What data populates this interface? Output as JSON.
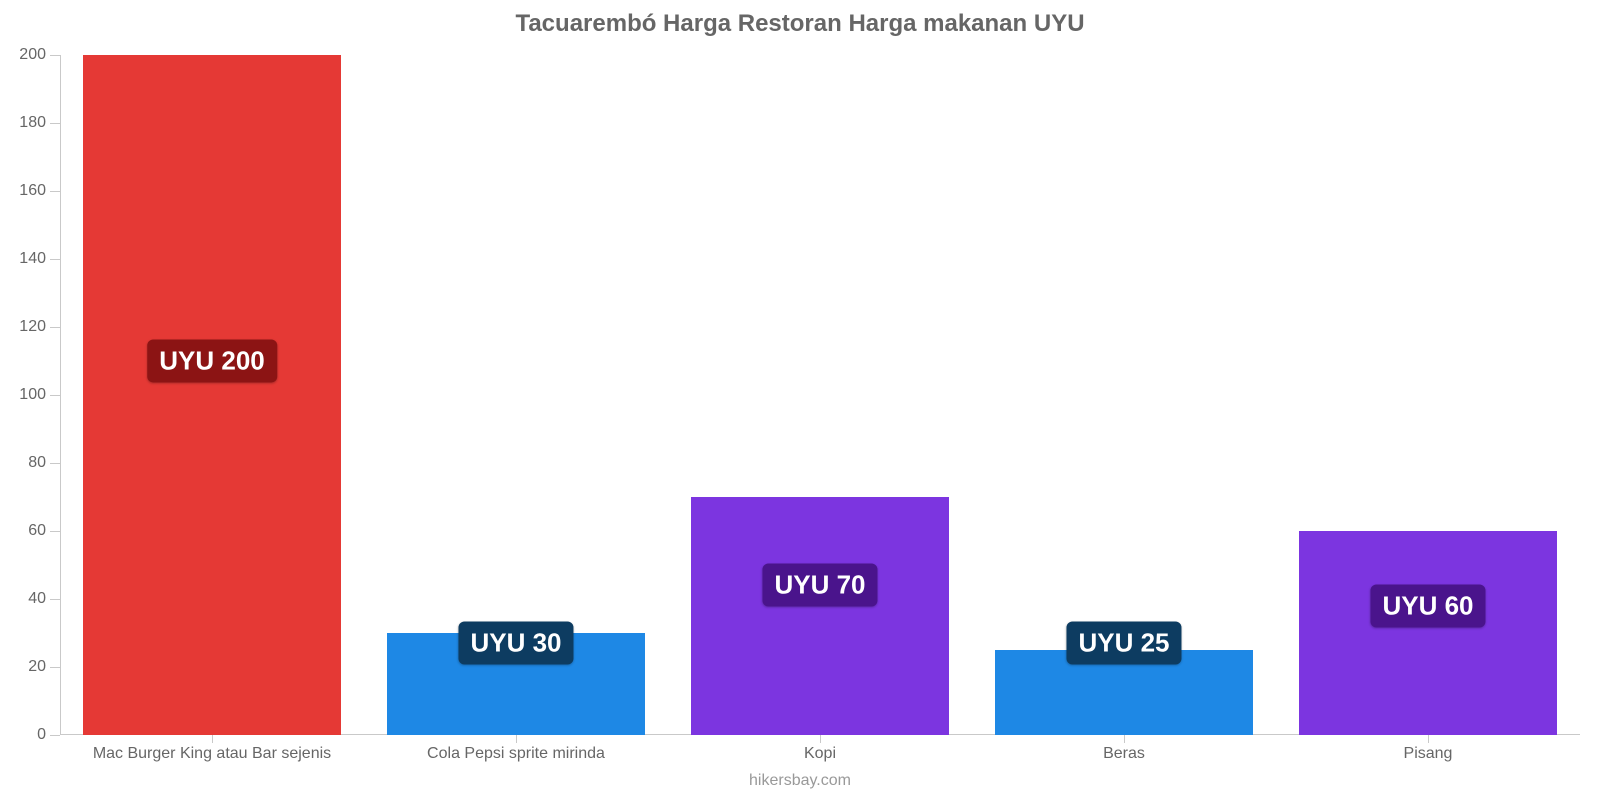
{
  "chart": {
    "type": "bar",
    "title": "Tacuarembó Harga Restoran Harga makanan UYU",
    "title_fontsize": 24,
    "title_color": "#666666",
    "credit": "hikersbay.com",
    "credit_fontsize": 16,
    "credit_color": "#999999",
    "background_color": "#ffffff",
    "axis_color": "#c9c9c9",
    "tick_label_color": "#666666",
    "tick_label_fontsize": 16,
    "ylim": [
      0,
      200
    ],
    "ytick_step": 20,
    "yticks": [
      0,
      20,
      40,
      60,
      80,
      100,
      120,
      140,
      160,
      180,
      200
    ],
    "bar_width_ratio": 0.85,
    "categories": [
      "Mac Burger King atau Bar sejenis",
      "Cola Pepsi sprite mirinda",
      "Kopi",
      "Beras",
      "Pisang"
    ],
    "values": [
      200,
      30,
      70,
      25,
      60
    ],
    "value_labels": [
      "UYU 200",
      "UYU 30",
      "UYU 70",
      "UYU 25",
      "UYU 60"
    ],
    "bar_colors": [
      "#e53935",
      "#1e88e5",
      "#7c35e0",
      "#1e88e5",
      "#7c35e0"
    ],
    "badge_bg_colors": [
      "#8c1414",
      "#0d3c61",
      "#4a148c",
      "#0d3c61",
      "#4a148c"
    ],
    "badge_text_color": "#ffffff",
    "badge_fontsize": 26,
    "badge_y_values": [
      110,
      27,
      44,
      27,
      38
    ]
  }
}
